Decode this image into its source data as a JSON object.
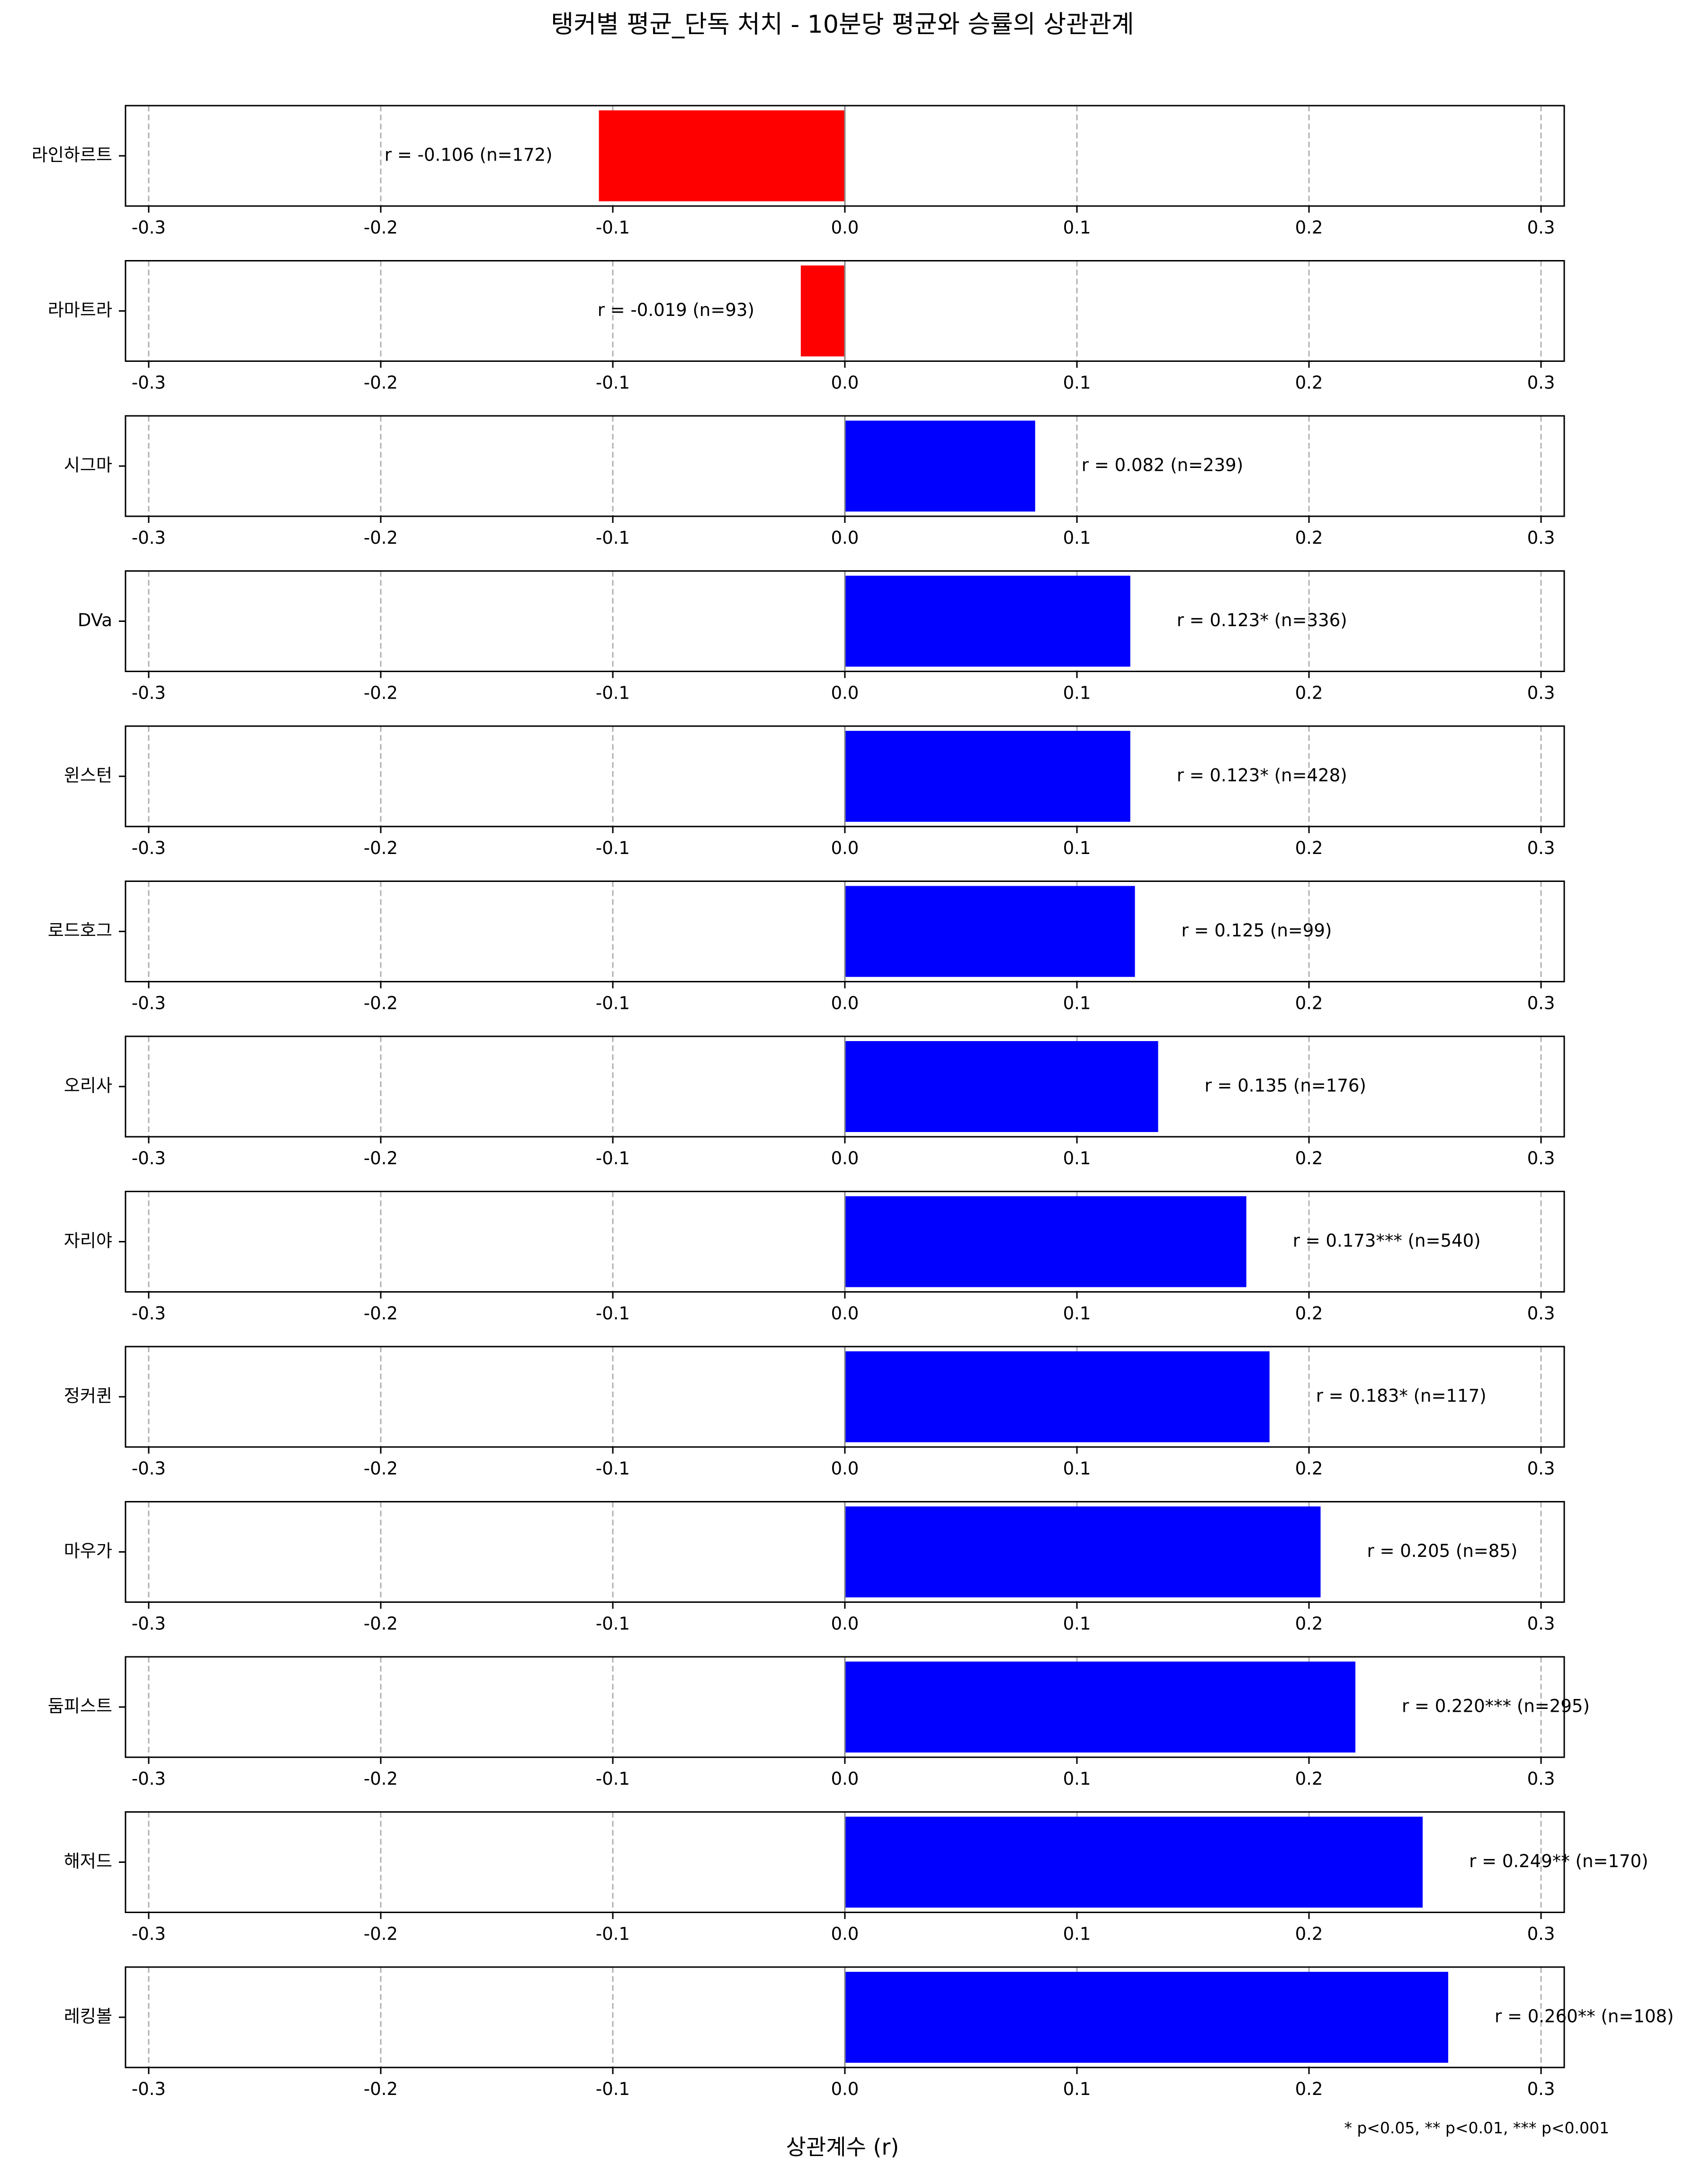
{
  "chart_data": {
    "type": "bar",
    "orientation": "horizontal",
    "title": "탱커별 평균_단독 처치 - 10분당 평균와 승률의 상관관계",
    "xlabel": "상관계수 (r)",
    "xlim": [
      -0.31,
      0.31
    ],
    "xticks": [
      -0.3,
      -0.2,
      -0.1,
      0.0,
      0.1,
      0.2,
      0.3
    ],
    "xtick_labels": [
      "-0.3",
      "-0.2",
      "-0.1",
      "0.0",
      "0.1",
      "0.2",
      "0.3"
    ],
    "grid": "x, dashed",
    "negative_color": "#ff0000",
    "positive_color": "#0000ff",
    "footnote": "* p<0.05, ** p<0.01, *** p<0.001",
    "panels": [
      {
        "category": "라인하르트",
        "value": -0.106,
        "label": "r = -0.106 (n=172)"
      },
      {
        "category": "라마트라",
        "value": -0.019,
        "label": "r = -0.019 (n=93)"
      },
      {
        "category": "시그마",
        "value": 0.082,
        "label": "r = 0.082 (n=239)"
      },
      {
        "category": "DVa",
        "value": 0.123,
        "label": "r = 0.123* (n=336)"
      },
      {
        "category": "윈스턴",
        "value": 0.123,
        "label": "r = 0.123* (n=428)"
      },
      {
        "category": "로드호그",
        "value": 0.125,
        "label": "r = 0.125 (n=99)"
      },
      {
        "category": "오리사",
        "value": 0.135,
        "label": "r = 0.135 (n=176)"
      },
      {
        "category": "자리야",
        "value": 0.173,
        "label": "r = 0.173*** (n=540)"
      },
      {
        "category": "정커퀸",
        "value": 0.183,
        "label": "r = 0.183* (n=117)"
      },
      {
        "category": "마우가",
        "value": 0.205,
        "label": "r = 0.205 (n=85)"
      },
      {
        "category": "둠피스트",
        "value": 0.22,
        "label": "r = 0.220*** (n=295)"
      },
      {
        "category": "해저드",
        "value": 0.249,
        "label": "r = 0.249** (n=170)"
      },
      {
        "category": "레킹볼",
        "value": 0.26,
        "label": "r = 0.260** (n=108)"
      }
    ]
  }
}
